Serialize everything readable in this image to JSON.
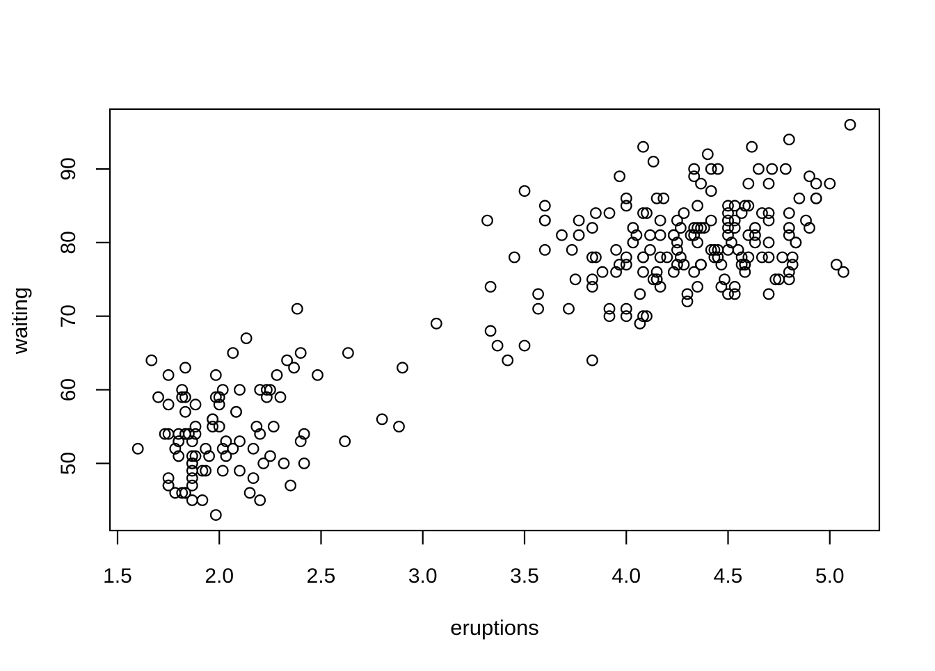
{
  "colors": {
    "background": "#ffffff",
    "foreground": "#000000"
  },
  "chart_data": {
    "type": "scatter",
    "title": "",
    "xlabel": "eruptions",
    "ylabel": "waiting",
    "legend": null,
    "grid": false,
    "marker": {
      "shape": "open-circle",
      "color": "#000000",
      "radius_px": 7.3,
      "stroke_px": 2.2
    },
    "x_ticks": [
      1.5,
      2.0,
      2.5,
      3.0,
      3.5,
      4.0,
      4.5,
      5.0
    ],
    "x_tick_labels": [
      "1.5",
      "2.0",
      "2.5",
      "3.0",
      "3.5",
      "4.0",
      "4.5",
      "5.0"
    ],
    "y_ticks": [
      50,
      60,
      70,
      80,
      90
    ],
    "y_tick_labels": [
      "50",
      "60",
      "70",
      "80",
      "90"
    ],
    "x_data_range": [
      1.6,
      5.1
    ],
    "y_data_range": [
      43,
      96
    ],
    "xlim": [
      1.4625,
      5.2435
    ],
    "ylim": [
      40.88,
      98.12
    ],
    "points": [
      [
        3.6,
        79
      ],
      [
        1.8,
        54
      ],
      [
        3.333,
        74
      ],
      [
        2.283,
        62
      ],
      [
        4.533,
        85
      ],
      [
        2.883,
        55
      ],
      [
        4.7,
        88
      ],
      [
        3.6,
        85
      ],
      [
        1.95,
        51
      ],
      [
        4.35,
        85
      ],
      [
        1.833,
        54
      ],
      [
        3.917,
        84
      ],
      [
        4.2,
        78
      ],
      [
        1.75,
        47
      ],
      [
        4.7,
        83
      ],
      [
        2.167,
        52
      ],
      [
        1.75,
        62
      ],
      [
        4.8,
        84
      ],
      [
        1.6,
        52
      ],
      [
        4.25,
        79
      ],
      [
        1.8,
        51
      ],
      [
        1.75,
        47
      ],
      [
        3.45,
        78
      ],
      [
        3.067,
        69
      ],
      [
        4.533,
        74
      ],
      [
        3.6,
        83
      ],
      [
        1.967,
        55
      ],
      [
        4.083,
        76
      ],
      [
        3.85,
        78
      ],
      [
        4.433,
        79
      ],
      [
        4.3,
        73
      ],
      [
        4.467,
        77
      ],
      [
        3.367,
        66
      ],
      [
        4.033,
        80
      ],
      [
        3.833,
        74
      ],
      [
        2.017,
        52
      ],
      [
        1.867,
        48
      ],
      [
        4.833,
        80
      ],
      [
        1.833,
        59
      ],
      [
        4.783,
        90
      ],
      [
        4.35,
        80
      ],
      [
        1.883,
        58
      ],
      [
        4.567,
        84
      ],
      [
        1.75,
        58
      ],
      [
        4.533,
        73
      ],
      [
        3.317,
        83
      ],
      [
        3.833,
        64
      ],
      [
        2.1,
        53
      ],
      [
        4.633,
        82
      ],
      [
        2.0,
        59
      ],
      [
        4.8,
        75
      ],
      [
        4.716,
        90
      ],
      [
        1.833,
        54
      ],
      [
        4.833,
        80
      ],
      [
        1.733,
        54
      ],
      [
        4.883,
        83
      ],
      [
        3.717,
        71
      ],
      [
        1.667,
        64
      ],
      [
        4.567,
        77
      ],
      [
        4.317,
        81
      ],
      [
        2.233,
        59
      ],
      [
        4.5,
        84
      ],
      [
        1.75,
        48
      ],
      [
        4.8,
        82
      ],
      [
        1.817,
        60
      ],
      [
        4.4,
        92
      ],
      [
        4.167,
        78
      ],
      [
        4.7,
        78
      ],
      [
        2.067,
        65
      ],
      [
        4.7,
        73
      ],
      [
        4.033,
        82
      ],
      [
        1.967,
        56
      ],
      [
        4.5,
        79
      ],
      [
        4.0,
        71
      ],
      [
        1.983,
        62
      ],
      [
        5.067,
        76
      ],
      [
        2.017,
        60
      ],
      [
        4.567,
        78
      ],
      [
        3.883,
        76
      ],
      [
        3.6,
        83
      ],
      [
        4.133,
        75
      ],
      [
        4.333,
        82
      ],
      [
        4.1,
        70
      ],
      [
        2.633,
        65
      ],
      [
        4.067,
        73
      ],
      [
        4.933,
        88
      ],
      [
        3.95,
        76
      ],
      [
        4.517,
        80
      ],
      [
        2.167,
        48
      ],
      [
        4.0,
        86
      ],
      [
        2.2,
        60
      ],
      [
        4.333,
        90
      ],
      [
        1.867,
        50
      ],
      [
        4.817,
        78
      ],
      [
        1.833,
        63
      ],
      [
        4.3,
        72
      ],
      [
        4.667,
        84
      ],
      [
        3.75,
        75
      ],
      [
        1.867,
        51
      ],
      [
        4.9,
        82
      ],
      [
        2.483,
        62
      ],
      [
        4.367,
        88
      ],
      [
        2.1,
        49
      ],
      [
        4.5,
        83
      ],
      [
        4.05,
        81
      ],
      [
        1.867,
        47
      ],
      [
        4.7,
        84
      ],
      [
        1.783,
        52
      ],
      [
        4.85,
        86
      ],
      [
        3.683,
        81
      ],
      [
        4.733,
        75
      ],
      [
        2.3,
        59
      ],
      [
        4.9,
        89
      ],
      [
        4.417,
        79
      ],
      [
        1.7,
        59
      ],
      [
        4.633,
        81
      ],
      [
        2.317,
        50
      ],
      [
        4.6,
        85
      ],
      [
        1.817,
        59
      ],
      [
        4.417,
        87
      ],
      [
        2.617,
        53
      ],
      [
        4.067,
        69
      ],
      [
        4.25,
        77
      ],
      [
        1.967,
        56
      ],
      [
        4.6,
        88
      ],
      [
        3.767,
        81
      ],
      [
        1.917,
        45
      ],
      [
        4.5,
        82
      ],
      [
        2.267,
        55
      ],
      [
        4.65,
        90
      ],
      [
        1.867,
        45
      ],
      [
        4.167,
        83
      ],
      [
        2.8,
        56
      ],
      [
        4.333,
        89
      ],
      [
        1.833,
        46
      ],
      [
        4.383,
        82
      ],
      [
        1.883,
        51
      ],
      [
        4.933,
        86
      ],
      [
        2.033,
        53
      ],
      [
        3.733,
        79
      ],
      [
        4.233,
        81
      ],
      [
        2.233,
        60
      ],
      [
        4.533,
        82
      ],
      [
        4.817,
        77
      ],
      [
        4.333,
        76
      ],
      [
        1.983,
        59
      ],
      [
        4.633,
        80
      ],
      [
        2.017,
        49
      ],
      [
        5.1,
        96
      ],
      [
        1.8,
        53
      ],
      [
        5.033,
        77
      ],
      [
        4.0,
        77
      ],
      [
        2.4,
        65
      ],
      [
        4.6,
        81
      ],
      [
        3.567,
        71
      ],
      [
        4.0,
        70
      ],
      [
        4.5,
        81
      ],
      [
        4.083,
        93
      ],
      [
        1.8,
        53
      ],
      [
        3.967,
        89
      ],
      [
        2.2,
        45
      ],
      [
        4.15,
        86
      ],
      [
        2.0,
        58
      ],
      [
        3.833,
        78
      ],
      [
        3.5,
        66
      ],
      [
        4.583,
        76
      ],
      [
        2.367,
        63
      ],
      [
        5.0,
        88
      ],
      [
        1.933,
        52
      ],
      [
        4.617,
        93
      ],
      [
        1.917,
        49
      ],
      [
        2.083,
        57
      ],
      [
        4.583,
        77
      ],
      [
        3.333,
        68
      ],
      [
        4.167,
        81
      ],
      [
        4.333,
        81
      ],
      [
        4.5,
        73
      ],
      [
        2.417,
        50
      ],
      [
        4.0,
        85
      ],
      [
        4.167,
        74
      ],
      [
        1.883,
        55
      ],
      [
        4.583,
        77
      ],
      [
        4.25,
        83
      ],
      [
        3.767,
        83
      ],
      [
        2.033,
        51
      ],
      [
        4.433,
        78
      ],
      [
        4.083,
        84
      ],
      [
        1.833,
        46
      ],
      [
        4.417,
        83
      ],
      [
        2.183,
        55
      ],
      [
        4.8,
        81
      ],
      [
        1.833,
        57
      ],
      [
        4.8,
        76
      ],
      [
        4.1,
        84
      ],
      [
        3.966,
        77
      ],
      [
        4.233,
        81
      ],
      [
        3.5,
        87
      ],
      [
        4.366,
        77
      ],
      [
        2.25,
        51
      ],
      [
        4.667,
        78
      ],
      [
        2.1,
        60
      ],
      [
        4.35,
        82
      ],
      [
        4.133,
        91
      ],
      [
        1.867,
        53
      ],
      [
        4.6,
        78
      ],
      [
        1.783,
        46
      ],
      [
        4.367,
        77
      ],
      [
        3.85,
        84
      ],
      [
        1.933,
        49
      ],
      [
        4.5,
        83
      ],
      [
        2.383,
        71
      ],
      [
        4.7,
        80
      ],
      [
        1.867,
        49
      ],
      [
        3.833,
        75
      ],
      [
        3.417,
        64
      ],
      [
        4.233,
        76
      ],
      [
        2.4,
        53
      ],
      [
        4.8,
        94
      ],
      [
        2.0,
        55
      ],
      [
        4.15,
        76
      ],
      [
        1.867,
        50
      ],
      [
        4.267,
        82
      ],
      [
        1.75,
        54
      ],
      [
        4.483,
        75
      ],
      [
        4.0,
        78
      ],
      [
        4.117,
        79
      ],
      [
        4.083,
        78
      ],
      [
        4.267,
        78
      ],
      [
        3.917,
        70
      ],
      [
        4.55,
        79
      ],
      [
        4.083,
        70
      ],
      [
        2.417,
        54
      ],
      [
        4.183,
        86
      ],
      [
        2.217,
        50
      ],
      [
        4.45,
        90
      ],
      [
        1.883,
        54
      ],
      [
        1.85,
        54
      ],
      [
        4.283,
        77
      ],
      [
        3.95,
        79
      ],
      [
        2.333,
        64
      ],
      [
        4.15,
        75
      ],
      [
        2.35,
        47
      ],
      [
        4.933,
        86
      ],
      [
        2.9,
        63
      ],
      [
        4.583,
        85
      ],
      [
        3.833,
        82
      ],
      [
        2.083,
        57
      ],
      [
        4.367,
        82
      ],
      [
        2.133,
        67
      ],
      [
        4.35,
        74
      ],
      [
        2.2,
        54
      ],
      [
        4.45,
        78
      ],
      [
        3.567,
        73
      ],
      [
        4.5,
        85
      ],
      [
        4.15,
        75
      ],
      [
        4.083,
        78
      ],
      [
        3.917,
        71
      ],
      [
        4.45,
        79
      ],
      [
        2.067,
        52
      ],
      [
        4.283,
        84
      ],
      [
        4.767,
        78
      ],
      [
        4.533,
        83
      ],
      [
        1.85,
        54
      ],
      [
        4.25,
        80
      ],
      [
        1.983,
        43
      ],
      [
        2.25,
        60
      ],
      [
        4.75,
        75
      ],
      [
        4.117,
        81
      ],
      [
        2.15,
        46
      ],
      [
        4.417,
        90
      ],
      [
        1.817,
        46
      ],
      [
        4.467,
        74
      ]
    ]
  }
}
